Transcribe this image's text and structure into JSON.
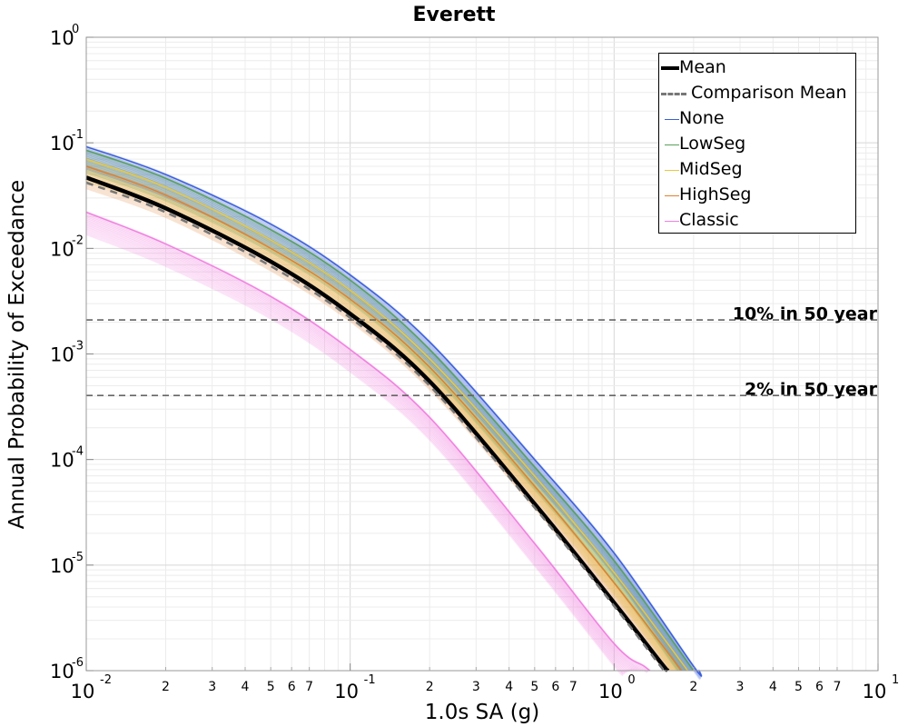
{
  "chart_data": {
    "type": "line",
    "title": "Everett",
    "xlabel": "1.0s SA (g)",
    "ylabel": "Annual Probability of Exceedance",
    "xscale": "log",
    "yscale": "log",
    "xlim": [
      0.01,
      10
    ],
    "ylim": [
      1e-06,
      1
    ],
    "grid": true,
    "legend_position": "top-right",
    "x_major_ticks": [
      {
        "base": "10",
        "exp": "-2",
        "value": 0.01
      },
      {
        "base": "10",
        "exp": "-1",
        "value": 0.1
      },
      {
        "base": "10",
        "exp": "0",
        "value": 1
      },
      {
        "base": "10",
        "exp": "1",
        "value": 10
      }
    ],
    "x_minor_tick_labels": [
      "2",
      "3",
      "4",
      "5",
      "6",
      "7"
    ],
    "y_major_ticks": [
      {
        "base": "10",
        "exp": "0",
        "value": 1
      },
      {
        "base": "10",
        "exp": "-1",
        "value": 0.1
      },
      {
        "base": "10",
        "exp": "-2",
        "value": 0.01
      },
      {
        "base": "10",
        "exp": "-3",
        "value": 0.001
      },
      {
        "base": "10",
        "exp": "-4",
        "value": 0.0001
      },
      {
        "base": "10",
        "exp": "-5",
        "value": 1e-05
      },
      {
        "base": "10",
        "exp": "-6",
        "value": 1e-06
      }
    ],
    "reference_lines": [
      {
        "label": "10% in 50 year",
        "y": 0.0021
      },
      {
        "label": "2% in 50 year",
        "y": 0.000404
      }
    ],
    "series": [
      {
        "name": "Mean",
        "color": "#000000",
        "style": "solid",
        "x": [
          0.01,
          0.02,
          0.05,
          0.1,
          0.2,
          0.5,
          1.0,
          1.5,
          1.6
        ],
        "y": [
          0.047,
          0.024,
          0.0075,
          0.0024,
          0.00055,
          3.8e-05,
          4.4e-06,
          1.2e-06,
          1e-06
        ]
      },
      {
        "name": "Comparison Mean",
        "color": "#777777",
        "style": "dashed",
        "x": [
          0.01,
          0.02,
          0.05,
          0.1,
          0.2,
          0.5,
          1.0,
          1.5,
          1.6
        ],
        "y": [
          0.042,
          0.022,
          0.0068,
          0.0022,
          0.0005,
          3.5e-05,
          4.1e-06,
          1.1e-06,
          9.5e-07
        ]
      },
      {
        "name": "None",
        "color": "#3a5fd9",
        "style": "solid",
        "x": [
          0.01,
          0.02,
          0.05,
          0.1,
          0.2,
          0.5,
          1.0,
          2.0,
          2.1
        ],
        "y": [
          0.092,
          0.05,
          0.017,
          0.0056,
          0.0013,
          0.0001,
          1.3e-05,
          1.1e-06,
          1e-06
        ]
      },
      {
        "name": "LowSeg",
        "color": "#58a05a",
        "style": "solid",
        "x": [
          0.01,
          0.02,
          0.05,
          0.1,
          0.2,
          0.5,
          1.0,
          2.0
        ],
        "y": [
          0.085,
          0.046,
          0.015,
          0.005,
          0.0011,
          8.5e-05,
          1.1e-05,
          1e-06
        ]
      },
      {
        "name": "MidSeg",
        "color": "#e8c840",
        "style": "solid",
        "x": [
          0.01,
          0.02,
          0.05,
          0.1,
          0.2,
          0.5,
          1.0,
          1.9
        ],
        "y": [
          0.07,
          0.038,
          0.012,
          0.004,
          0.0009,
          7e-05,
          8.5e-06,
          1e-06
        ]
      },
      {
        "name": "HighSeg",
        "color": "#e08030",
        "style": "solid",
        "x": [
          0.01,
          0.02,
          0.05,
          0.1,
          0.2,
          0.5,
          1.0,
          1.8
        ],
        "y": [
          0.06,
          0.032,
          0.01,
          0.0033,
          0.00075,
          5.6e-05,
          6.8e-06,
          1e-06
        ]
      },
      {
        "name": "Classic",
        "color": "#f080e0",
        "style": "solid",
        "x": [
          0.01,
          0.02,
          0.05,
          0.1,
          0.2,
          0.5,
          1.0,
          1.3,
          1.4
        ],
        "y": [
          0.022,
          0.011,
          0.0035,
          0.0011,
          0.00025,
          1.6e-05,
          1.8e-06,
          1.1e-06,
          9.5e-07
        ]
      }
    ]
  }
}
